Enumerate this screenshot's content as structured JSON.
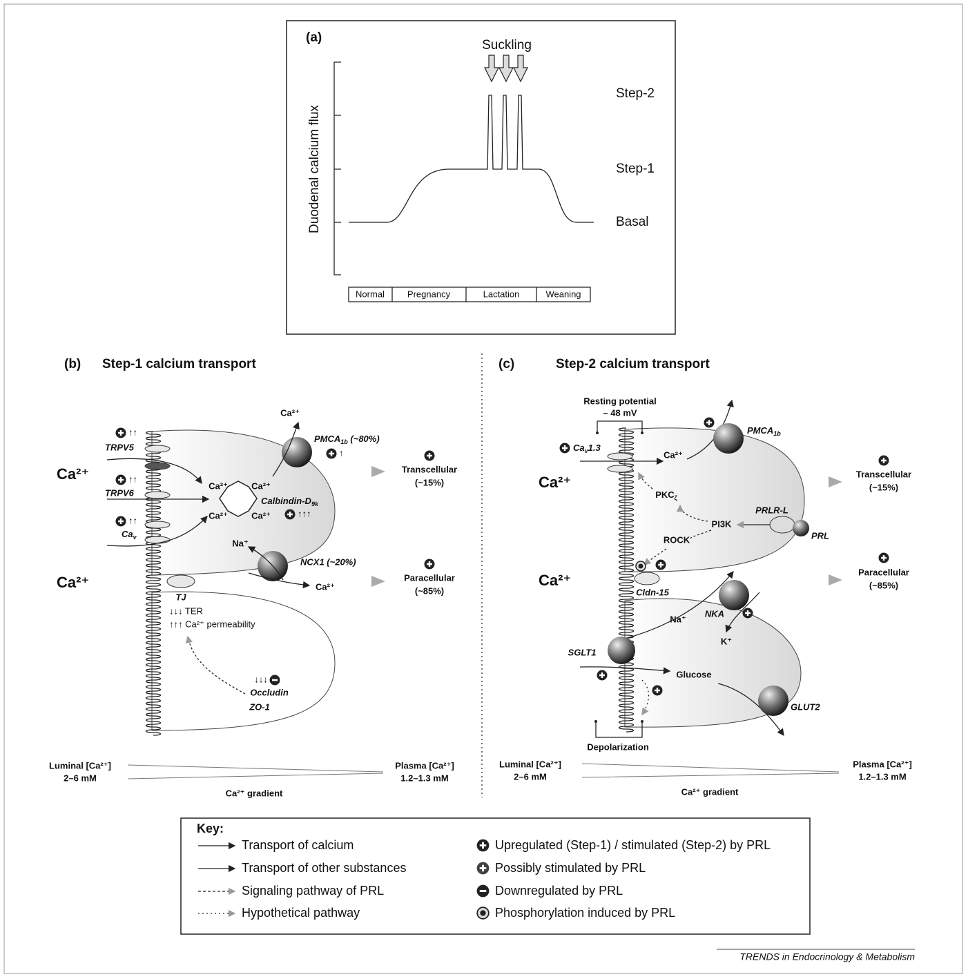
{
  "panel_a": {
    "label": "(a)",
    "y_axis_label": "Duodenal calcium flux",
    "stimulus": "Suckling",
    "levels": [
      "Step-2",
      "Step-1",
      "Basal"
    ],
    "phases": [
      "Normal",
      "Pregnancy",
      "Lactation",
      "Weaning"
    ]
  },
  "panel_b": {
    "label": "(b)",
    "title": "Step-1 calcium transport",
    "ion": "Ca²⁺",
    "trpv5": {
      "name": "TRPV5",
      "change": "↑↑"
    },
    "trpv6": {
      "name": "TRPV6",
      "change": "↑↑"
    },
    "cav": {
      "text": "Ca",
      "sub": "v",
      "change": "↑↑"
    },
    "pmca": {
      "text": "PMCA",
      "sub": "1b",
      "suffix": " (~80%)",
      "change": "↑",
      "ion": "Ca²⁺"
    },
    "calbindin": {
      "text": "Calbindin-D",
      "sub": "9k",
      "change": "↑↑↑",
      "ions": [
        "Ca²⁺",
        "Ca²⁺",
        "Ca²⁺",
        "Ca²⁺"
      ]
    },
    "ncx1": {
      "name": "NCX1 (~20%)",
      "in_ion": "Na⁺",
      "out_ion": "Ca²⁺"
    },
    "transcellular": [
      "Transcellular",
      "(~15%)"
    ],
    "paracellular": [
      "Paracellular",
      "(~85%)"
    ],
    "tj": "TJ",
    "ter": "↓↓↓ TER",
    "permeability": "↑↑↑ Ca²⁺ permeability",
    "occludin": {
      "change": "↓↓↓",
      "names": [
        "Occludin",
        "ZO-1"
      ]
    },
    "luminal": [
      "Luminal [Ca²⁺]",
      "2–6 mM"
    ],
    "plasma": [
      "Plasma [Ca²⁺]",
      "1.2–1.3 mM"
    ],
    "gradient": "Ca²⁺ gradient"
  },
  "panel_c": {
    "label": "(c)",
    "title": "Step-2 calcium transport",
    "ion": "Ca²⁺",
    "resting": [
      "Resting potential",
      "– 48 mV"
    ],
    "cav13": {
      "text": "Ca",
      "sub": "v",
      "suffix": "1.3"
    },
    "cav_ion": "Ca²⁺",
    "pmca": {
      "text": "PMCA",
      "sub": "1b"
    },
    "pkc": {
      "text": "PKC",
      "sub": "ζ"
    },
    "pi3k": "PI3K",
    "prlr": "PRLR-L",
    "prl": "PRL",
    "rock": "ROCK",
    "cldn": "Cldn-15",
    "na": "Na⁺",
    "nka": "NKA",
    "k": "K⁺",
    "sglt1": "SGLT1",
    "glucose": "Glucose",
    "glut2": "GLUT2",
    "depolarization": "Depolarization",
    "transcellular": [
      "Transcellular",
      "(~15%)"
    ],
    "paracellular": [
      "Paracellular",
      "(~85%)"
    ],
    "luminal": [
      "Luminal [Ca²⁺]",
      "2–6 mM"
    ],
    "plasma": [
      "Plasma [Ca²⁺]",
      "1.2–1.3 mM"
    ],
    "gradient": "Ca²⁺ gradient"
  },
  "key": {
    "title": "Key:",
    "lines": [
      "Transport of calcium",
      "Transport of other substances",
      "Signaling pathway of PRL",
      "Hypothetical pathway"
    ],
    "symbols": [
      "Upregulated (Step-1) / stimulated (Step-2) by PRL",
      "Possibly stimulated by PRL",
      "Downregulated by PRL",
      "Phosphorylation induced by PRL"
    ]
  },
  "footer": "TRENDS in Endocrinology & Metabolism"
}
